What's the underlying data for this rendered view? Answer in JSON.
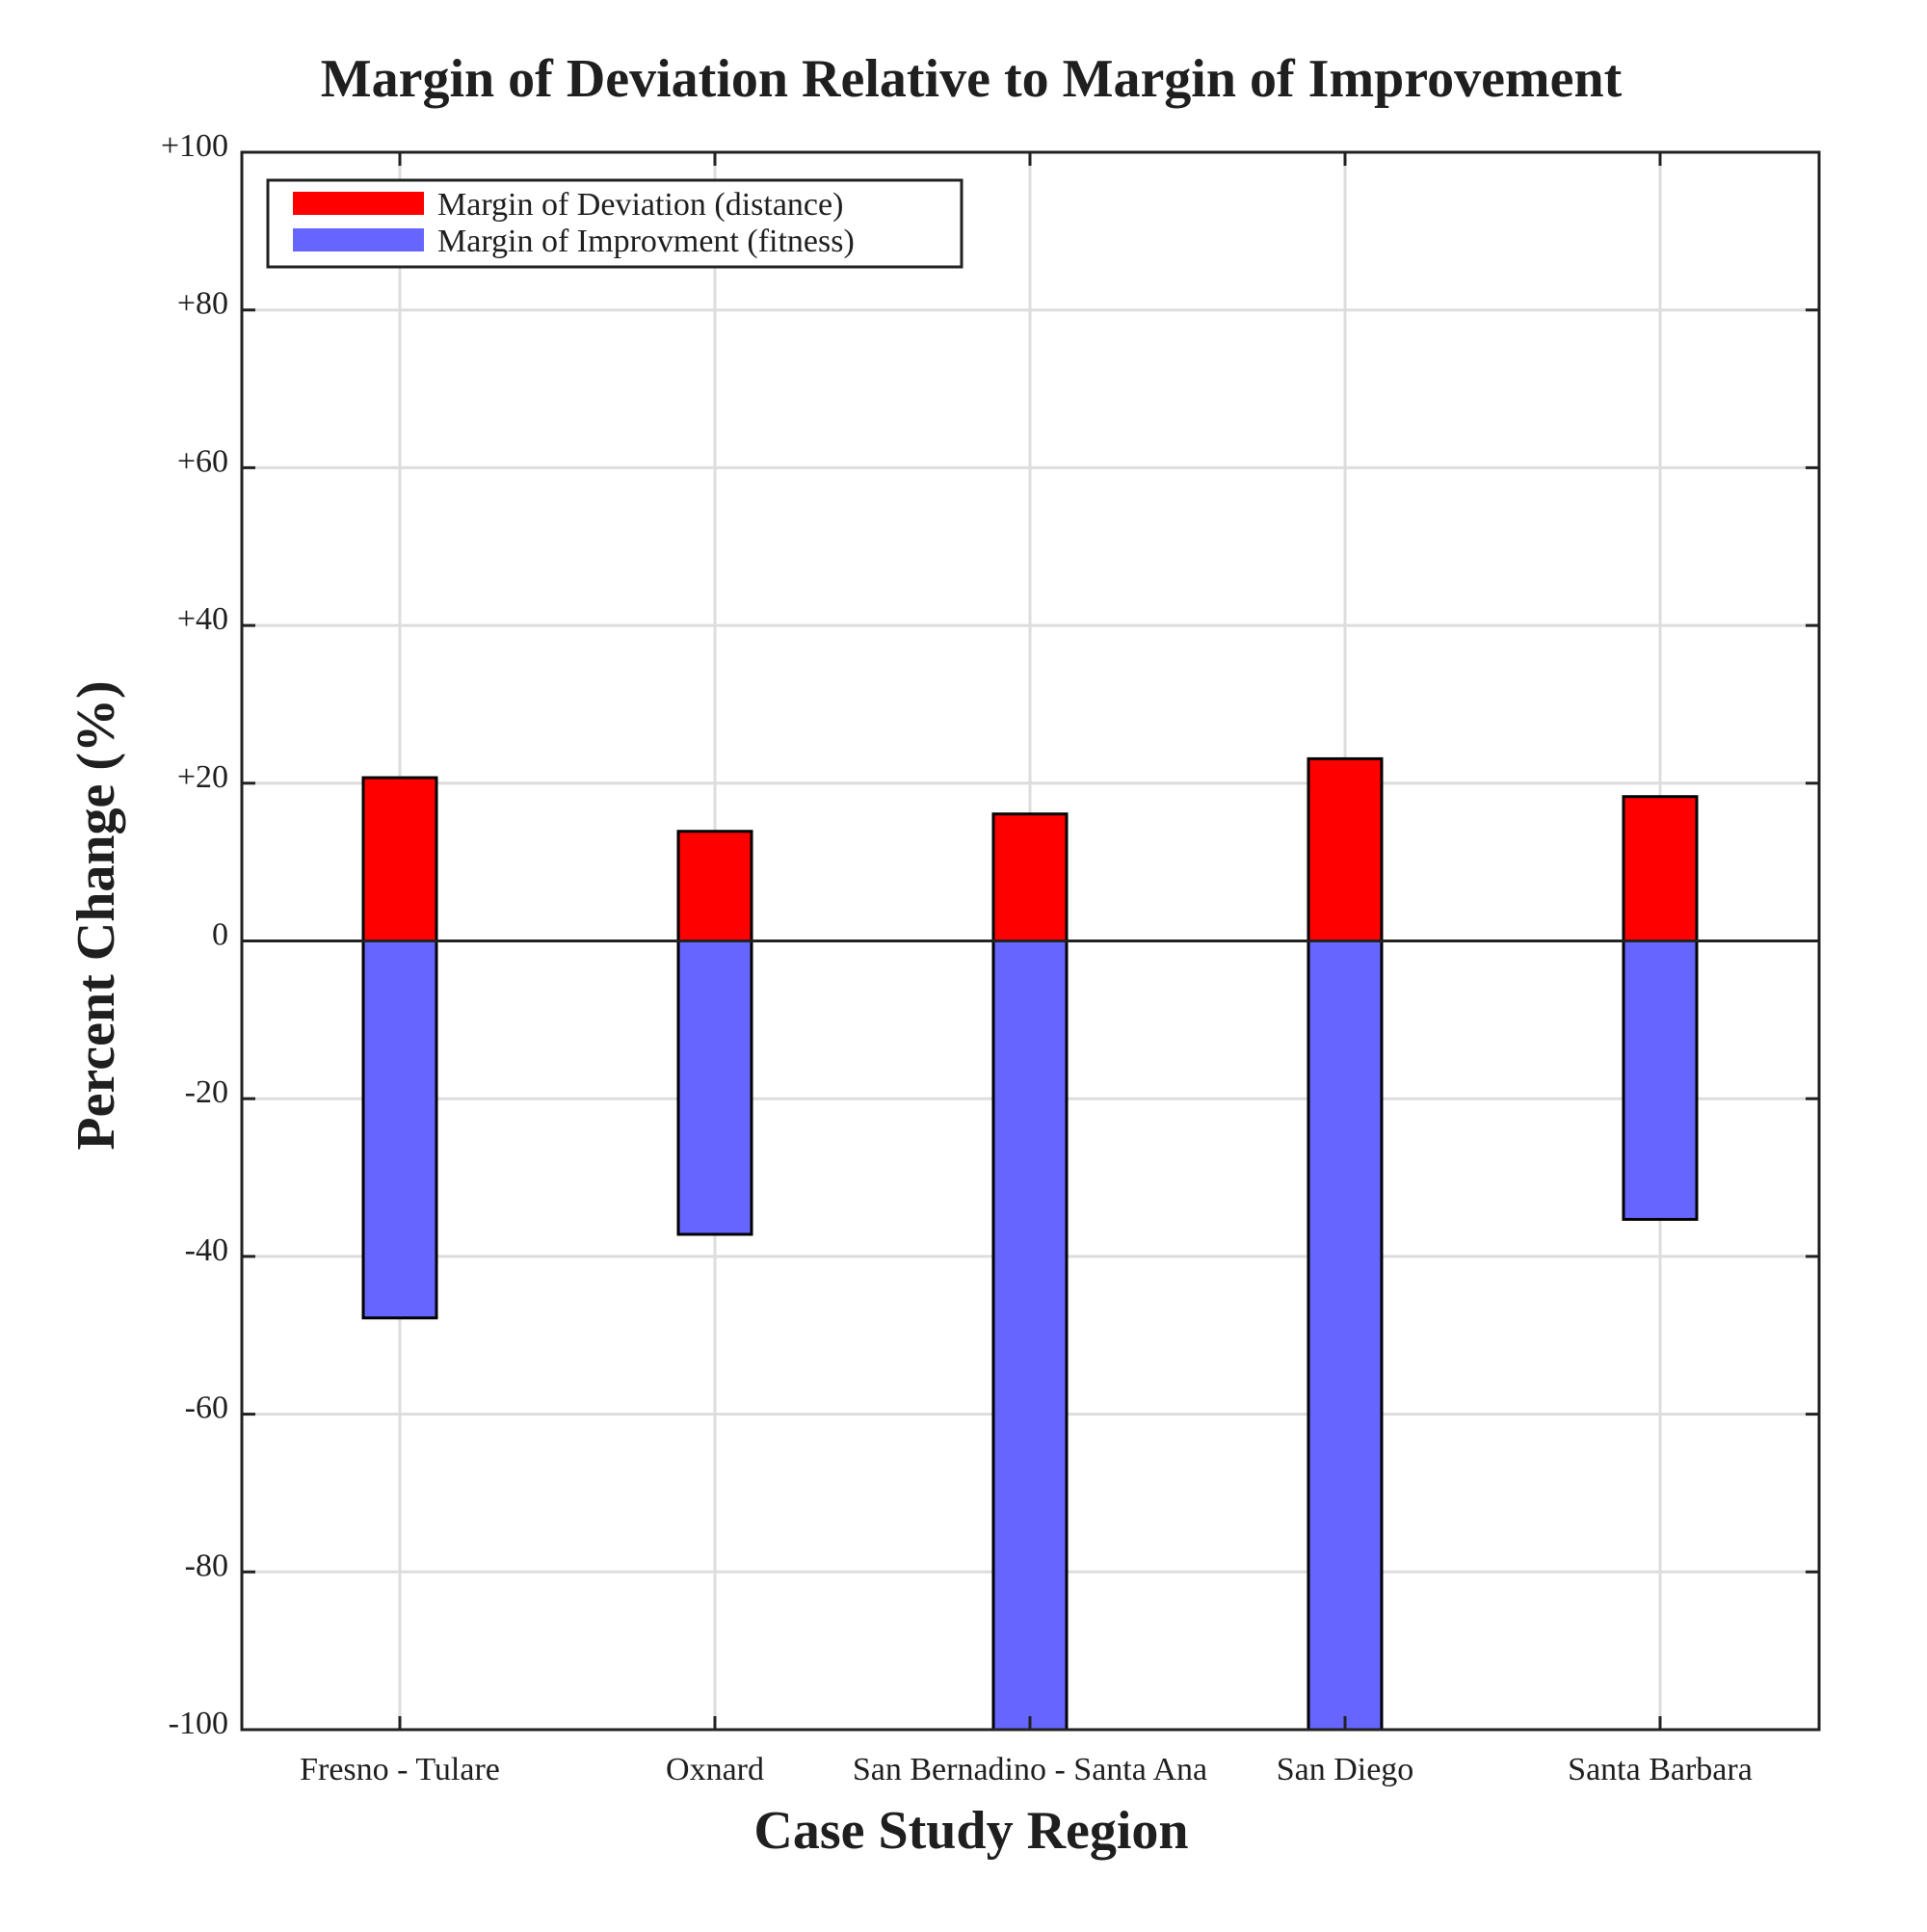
{
  "chart_data": {
    "type": "bar",
    "title": "Margin of Deviation Relative to Margin of Improvement",
    "xlabel": "Case Study Region",
    "ylabel": "Percent Change (%)",
    "categories": [
      "Fresno - Tulare",
      "Oxnard",
      "San Bernadino - Santa Ana",
      "San Diego",
      "Santa Barbara"
    ],
    "series": [
      {
        "name": "Margin of Deviation (distance)",
        "color": "#ff0000",
        "values": [
          20.7,
          13.9,
          16.1,
          23.1,
          18.3
        ]
      },
      {
        "name": "Margin of Improvment (fitness)",
        "color": "#6666ff",
        "values": [
          -47.8,
          -37.2,
          -100,
          -100,
          -35.3
        ]
      }
    ],
    "ylim": [
      -100,
      100
    ],
    "yticks": [
      100,
      80,
      60,
      40,
      20,
      0,
      -20,
      -40,
      -60,
      -80,
      -100
    ],
    "ytick_labels": [
      "+100",
      "+80",
      "+60",
      "+40",
      "+20",
      "0",
      "-20",
      "-40",
      "-60",
      "-80",
      "-100"
    ],
    "grid": true,
    "legend_position": "top-left",
    "bar_edge_color": "#000000",
    "grid_color": "#dddddd",
    "axis_color": "#222222"
  }
}
